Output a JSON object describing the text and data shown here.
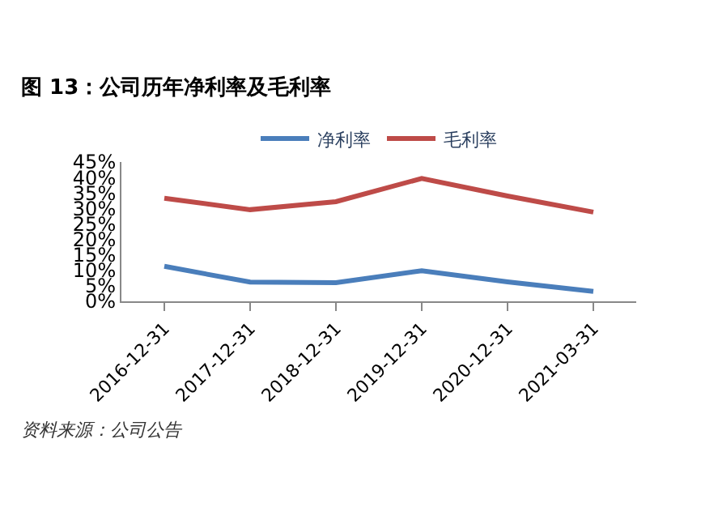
{
  "chart_data": {
    "type": "line",
    "title": "图 13：公司历年净利率及毛利率",
    "categories": [
      "2016-12-31",
      "2017-12-31",
      "2018-12-31",
      "2019-12-31",
      "2020-12-31",
      "2021-03-31"
    ],
    "series": [
      {
        "name": "净利率",
        "color": "#4a7ebb",
        "values": [
          11.3,
          6.2,
          6.0,
          9.9,
          6.3,
          3.2
        ]
      },
      {
        "name": "毛利率",
        "color": "#be4b48",
        "values": [
          33.3,
          29.6,
          32.2,
          39.7,
          34.0,
          28.8
        ]
      }
    ],
    "ylim": [
      0,
      45
    ],
    "yticks": [
      {
        "value": 0,
        "label": "0%"
      },
      {
        "value": 5,
        "label": "5%"
      },
      {
        "value": 10,
        "label": "10%"
      },
      {
        "value": 15,
        "label": "15%"
      },
      {
        "value": 20,
        "label": "20%"
      },
      {
        "value": 25,
        "label": "25%"
      },
      {
        "value": 30,
        "label": "30%"
      },
      {
        "value": 35,
        "label": "35%"
      },
      {
        "value": 40,
        "label": "40%"
      },
      {
        "value": 45,
        "label": "45%"
      }
    ],
    "legend": "top",
    "marker": "none",
    "line_style": "solid",
    "annotations": [
      "资料来源：公司公告"
    ]
  }
}
